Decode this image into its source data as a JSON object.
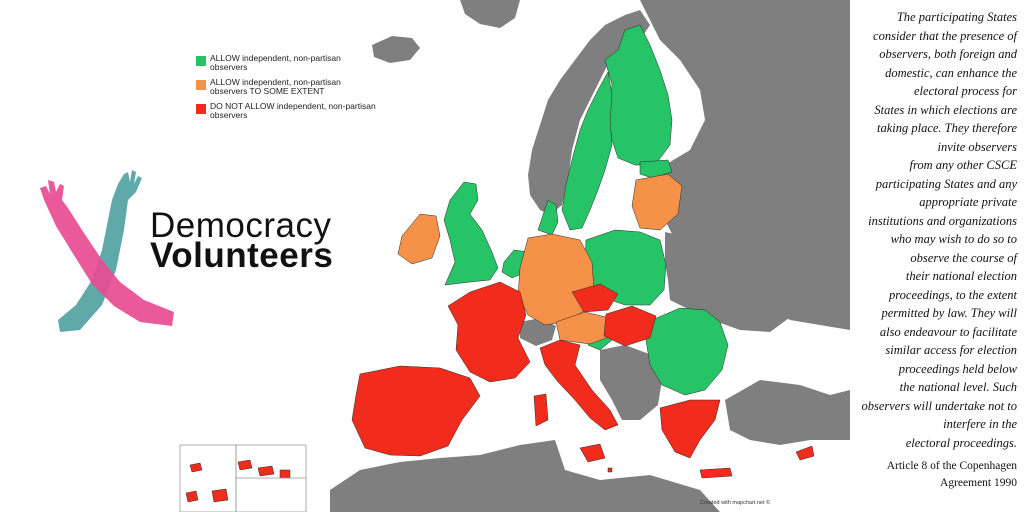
{
  "colors": {
    "allow": "#27c467",
    "some_extent": "#f59148",
    "do_not_allow": "#f22c1c",
    "non_member": "#7f7f7f",
    "sea": "#ffffff",
    "logo_pink": "#e84c93",
    "logo_teal": "#5fa9a8"
  },
  "legend": {
    "items": [
      {
        "label": "ALLOW independent, non-partisan\nobservers",
        "color": "#27c467"
      },
      {
        "label": "ALLOW independent, non-partisan\nobservers TO SOME EXTENT",
        "color": "#f59148"
      },
      {
        "label": "DO NOT ALLOW independent, non-partisan\nobservers",
        "color": "#f22c1c"
      }
    ]
  },
  "brand": {
    "line1": "Democracy",
    "line2": "Volunteers"
  },
  "credit": "Created with mapchart.net ©",
  "quote": {
    "text": "The participating States\nconsider that the presence of\nobservers, both foreign and\ndomestic, can enhance the\nelectoral process for\nStates in which elections are\ntaking place. They therefore\ninvite observers\nfrom any other CSCE\nparticipating States and any\nappropriate private\ninstitutions and organizations\nwho may wish to do so to\nobserve the course of\ntheir national election\nproceedings, to the extent\npermitted by law. They will\nalso endeavour to facilitate\nsimilar access for election\nproceedings held below\nthe national level. Such\nobservers will undertake not to\ninterfere in the\nelectoral proceedings.",
    "citation": "Article 8 of the Copenhagen\nAgreement 1990"
  }
}
